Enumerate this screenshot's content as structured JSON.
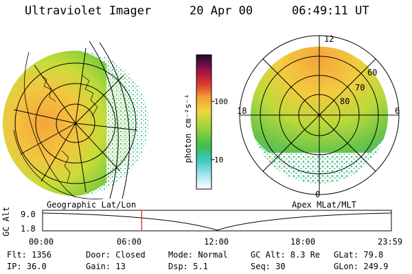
{
  "header": {
    "title": "Ultraviolet Imager",
    "date": "20 Apr 00",
    "time": "06:49:11 UT"
  },
  "colorbar": {
    "unit_label": "photon cm⁻²s⁻¹",
    "tick_100": "100",
    "tick_10": "10"
  },
  "polar_plot": {
    "lat_labels": [
      "60",
      "70",
      "80"
    ],
    "mlt_labels": [
      "12",
      "18",
      "6",
      "0"
    ]
  },
  "timeline": {
    "left_label": "Geographic Lat/Lon",
    "right_label": "Apex MLat/MLT",
    "axis_label": "GC Alt",
    "y_max": "9.0",
    "y_min": "1.8",
    "x_ticks": [
      "00:00",
      "06:00",
      "12:00",
      "18:00",
      "23:59"
    ],
    "marker_hour": 6.82
  },
  "status": {
    "flt": "Flt: 1356",
    "door": "Door: Closed",
    "mode": "Mode: Normal",
    "gc_alt": "GC Alt: 8.3 Re",
    "glat": "GLat:  79.8",
    "ip": "IP: 36.0",
    "gain": "Gain: 13",
    "dsp": "Dsp:    5.1",
    "seq": "Seq: 30",
    "glon": "GLon: 249.9"
  }
}
